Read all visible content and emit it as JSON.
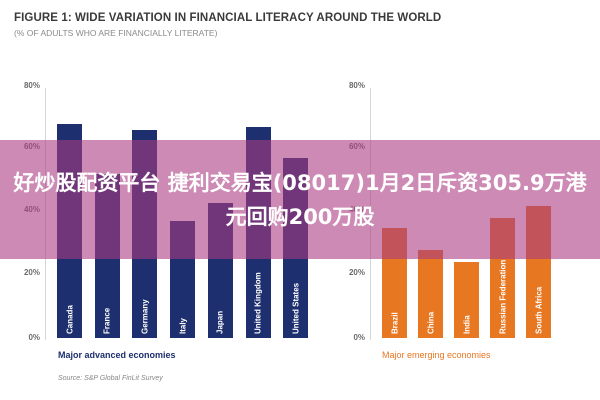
{
  "header": {
    "title": "FIGURE 1: WIDE VARIATION IN FINANCIAL LITERACY AROUND THE WORLD",
    "subtitle": "(% OF ADULTS WHO ARE FINANCIALLY LITERATE)"
  },
  "yticks": [
    "80%",
    "60%",
    "40%",
    "20%",
    "0%"
  ],
  "groups": {
    "advanced": {
      "label": "Major advanced economies",
      "color": "#1d2f6e",
      "bars": [
        {
          "name": "Canada",
          "value": 68
        },
        {
          "name": "France",
          "value": 52
        },
        {
          "name": "Germany",
          "value": 66
        },
        {
          "name": "Italy",
          "value": 37
        },
        {
          "name": "Japan",
          "value": 43
        },
        {
          "name": "United Kingdom",
          "value": 67
        },
        {
          "name": "United States",
          "value": 57
        }
      ]
    },
    "emerging": {
      "label": "Major emerging economies",
      "color": "#e87722",
      "bars": [
        {
          "name": "Brazil",
          "value": 35
        },
        {
          "name": "China",
          "value": 28
        },
        {
          "name": "India",
          "value": 24
        },
        {
          "name": "Russian Federation",
          "value": 38
        },
        {
          "name": "South Africa",
          "value": 42
        }
      ]
    }
  },
  "source": "Source: S&P Global FinLit Survey",
  "banner": {
    "text": "好炒股配资平台 捷利交易宝(08017)1月2日斥资305.9万港元回购200万股"
  },
  "chart_data": {
    "type": "bar",
    "title": "FIGURE 1: WIDE VARIATION IN FINANCIAL LITERACY AROUND THE WORLD",
    "subtitle": "(% OF ADULTS WHO ARE FINANCIALLY LITERATE)",
    "xlabel": "",
    "ylabel": "% of adults who are financially literate",
    "ylim": [
      0,
      80
    ],
    "yticks": [
      "0%",
      "20%",
      "40%",
      "60%",
      "80%"
    ],
    "grid": false,
    "categories": [
      "Canada",
      "France",
      "Germany",
      "Italy",
      "Japan",
      "United Kingdom",
      "United States",
      "Brazil",
      "China",
      "India",
      "Russian Federation",
      "South Africa"
    ],
    "series": [
      {
        "name": "Major advanced economies",
        "color": "#1d2f6e",
        "categories": [
          "Canada",
          "France",
          "Germany",
          "Italy",
          "Japan",
          "United Kingdom",
          "United States"
        ],
        "values": [
          68,
          52,
          66,
          37,
          43,
          67,
          57
        ]
      },
      {
        "name": "Major emerging economies",
        "color": "#e87722",
        "categories": [
          "Brazil",
          "China",
          "India",
          "Russian Federation",
          "South Africa"
        ],
        "values": [
          35,
          28,
          24,
          38,
          42
        ]
      }
    ],
    "annotations": [
      "Source: S&P Global FinLit Survey"
    ]
  }
}
